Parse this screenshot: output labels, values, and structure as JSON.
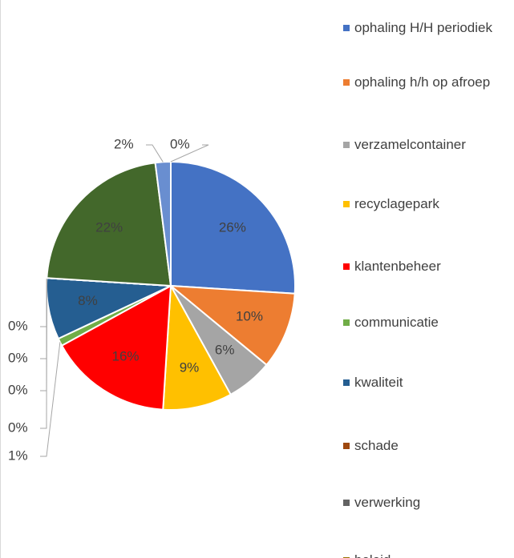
{
  "chart_data": {
    "type": "pie",
    "categories": [
      "ophaling H/H periodiek",
      "ophaling h/h op afroep",
      "verzamelcontainer",
      "recyclagepark",
      "klantenbeheer",
      "communicatie",
      "kwaliteit",
      "schade",
      "verwerking",
      "beleid",
      null,
      null,
      null,
      null
    ],
    "values": [
      26,
      10,
      6,
      9,
      16,
      1,
      8,
      0,
      0,
      0,
      0,
      22,
      2,
      0
    ],
    "value_labels": [
      "26%",
      "10%",
      "6%",
      "9%",
      "16%",
      "1%",
      "8%",
      "0%",
      "0%",
      "0%",
      "0%",
      "22%",
      "2%",
      "0%"
    ],
    "colors": [
      "#4472c4",
      "#ed7d31",
      "#a5a5a5",
      "#ffc000",
      "#ff0000",
      "#70ad47",
      "#255e91",
      "#9e480e",
      "#636363",
      "#997300",
      "#264478",
      "#43682b",
      "#698ed0",
      "#f1975a"
    ],
    "legend": "right"
  }
}
